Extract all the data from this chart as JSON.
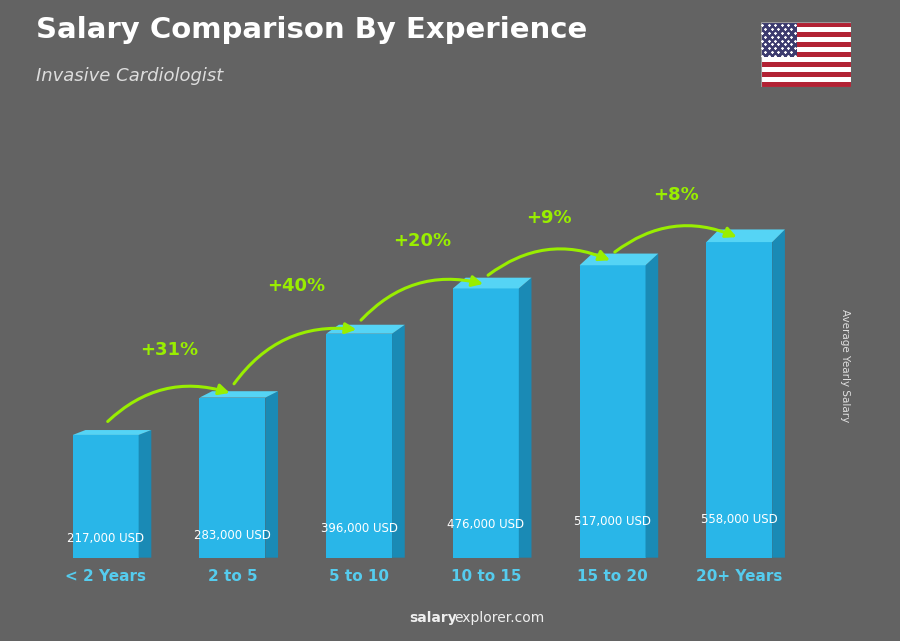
{
  "title": "Salary Comparison By Experience",
  "subtitle": "Invasive Cardiologist",
  "categories": [
    "< 2 Years",
    "2 to 5",
    "5 to 10",
    "10 to 15",
    "15 to 20",
    "20+ Years"
  ],
  "values": [
    217000,
    283000,
    396000,
    476000,
    517000,
    558000
  ],
  "value_labels": [
    "217,000 USD",
    "283,000 USD",
    "396,000 USD",
    "476,000 USD",
    "517,000 USD",
    "558,000 USD"
  ],
  "pct_changes": [
    "+31%",
    "+40%",
    "+20%",
    "+9%",
    "+8%"
  ],
  "bar_color_face": "#29b6e8",
  "bar_color_right": "#1a8ab5",
  "bar_color_top": "#55d4f5",
  "background_color": "#636363",
  "title_color": "#ffffff",
  "subtitle_color": "#dddddd",
  "label_color": "#ffffff",
  "pct_color": "#99ee00",
  "xtick_color": "#55ccee",
  "ylabel_text": "Average Yearly Salary",
  "watermark_bold": "salary",
  "watermark_normal": "explorer.com",
  "ylim": [
    0,
    680000
  ]
}
